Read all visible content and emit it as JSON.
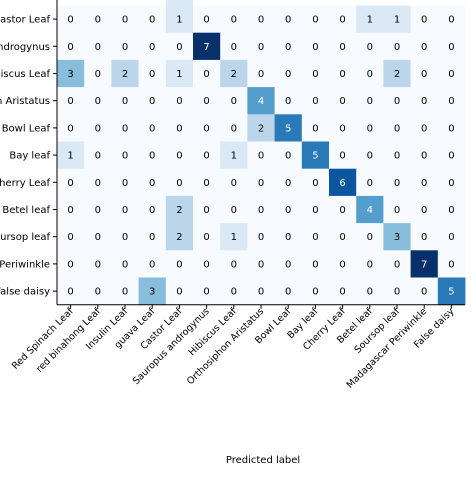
{
  "chart_data": {
    "type": "heatmap",
    "title": "",
    "xlabel": "Predicted label",
    "ylabel": "",
    "colormap": "Blues",
    "value_range": [
      0,
      7
    ],
    "row_labels": [
      "Castor Leaf",
      "androgynus",
      "Hibiscus Leaf",
      "n Aristatus",
      "Bowl Leaf",
      "Bay leaf",
      "Cherry Leaf",
      "Betel leaf",
      "oursop leaf",
      "Periwinkle",
      "False daisy"
    ],
    "col_labels": [
      "Red Spinach Leaf",
      "red binahong Leaf",
      "Insulin Leaf",
      "guava Leaf",
      "Castor Leaf",
      "Sauropus androgynus",
      "Hibiscus Leaf",
      "Orthosiphon Aristatus",
      "Bowl Leaf",
      "Bay leaf",
      "Cherry Leaf",
      "Betel leaf",
      "Soursop leaf",
      "Madagascar Periwinkle",
      "False daisy"
    ],
    "values": [
      [
        0,
        0,
        0,
        0,
        1,
        0,
        0,
        0,
        0,
        0,
        0,
        1,
        1,
        0,
        0
      ],
      [
        0,
        0,
        0,
        0,
        0,
        7,
        0,
        0,
        0,
        0,
        0,
        0,
        0,
        0,
        0
      ],
      [
        3,
        0,
        2,
        0,
        1,
        0,
        2,
        0,
        0,
        0,
        0,
        0,
        2,
        0,
        0
      ],
      [
        0,
        0,
        0,
        0,
        0,
        0,
        0,
        4,
        0,
        0,
        0,
        0,
        0,
        0,
        0
      ],
      [
        0,
        0,
        0,
        0,
        0,
        0,
        0,
        2,
        5,
        0,
        0,
        0,
        0,
        0,
        0
      ],
      [
        1,
        0,
        0,
        0,
        0,
        0,
        1,
        0,
        0,
        5,
        0,
        0,
        0,
        0,
        0
      ],
      [
        0,
        0,
        0,
        0,
        0,
        0,
        0,
        0,
        0,
        0,
        6,
        0,
        0,
        0,
        0
      ],
      [
        0,
        0,
        0,
        0,
        2,
        0,
        0,
        0,
        0,
        0,
        0,
        4,
        0,
        0,
        0
      ],
      [
        0,
        0,
        0,
        0,
        2,
        0,
        1,
        0,
        0,
        0,
        0,
        0,
        3,
        0,
        0
      ],
      [
        0,
        0,
        0,
        0,
        0,
        0,
        0,
        0,
        0,
        0,
        0,
        0,
        0,
        7,
        0
      ],
      [
        0,
        0,
        0,
        3,
        0,
        0,
        0,
        0,
        0,
        0,
        0,
        0,
        0,
        0,
        5
      ]
    ],
    "colors": {
      "low": "#f7fbff",
      "high": "#08306b",
      "text_dark": "#000000",
      "text_light": "#ffffff",
      "axis": "#000000"
    }
  }
}
